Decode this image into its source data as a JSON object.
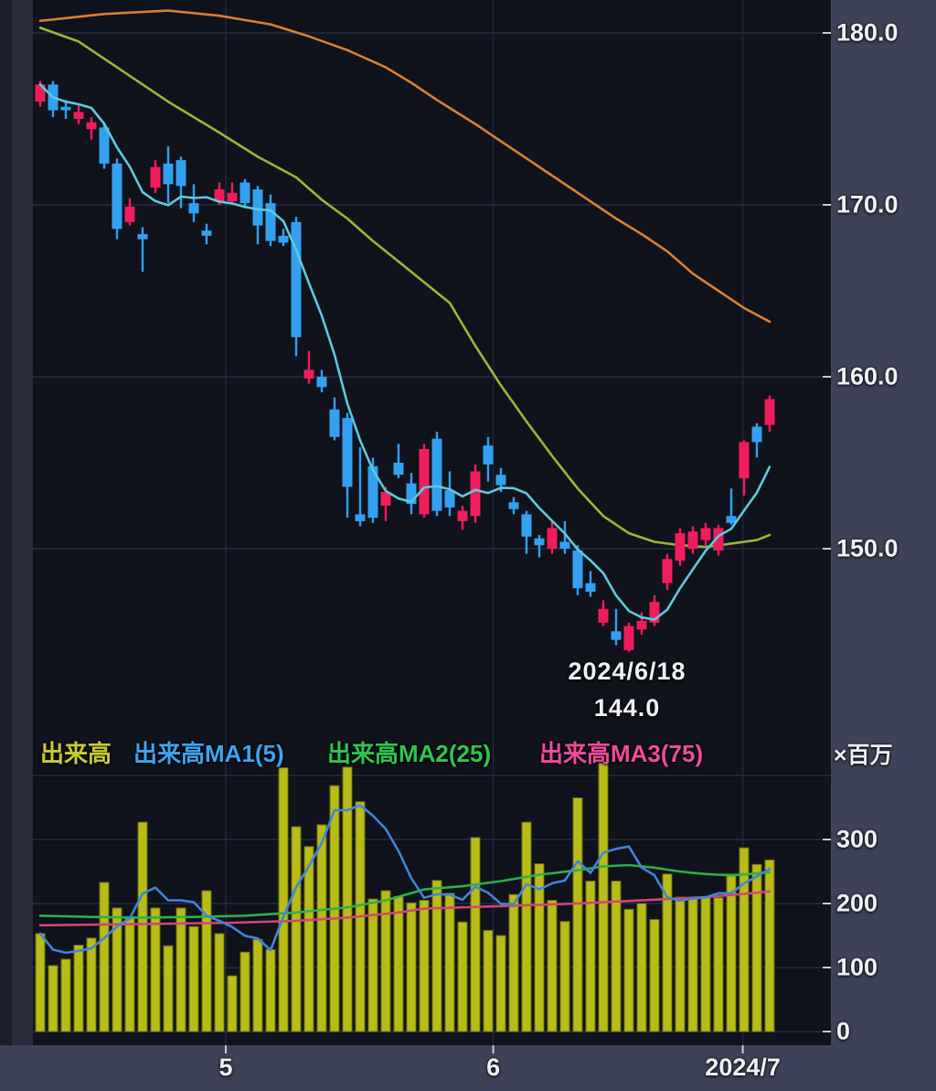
{
  "chart_data": {
    "type": "candlestick+volume-bar",
    "title": "",
    "legend_position": "top-of-volume-pane",
    "grid": true,
    "price_pane": {
      "y_axis": {
        "ticks": [
          {
            "value": 180,
            "label": "180.0"
          },
          {
            "value": 170,
            "label": "170.0"
          },
          {
            "value": 160,
            "label": "160.0"
          },
          {
            "value": 150,
            "label": "150.0"
          }
        ]
      },
      "annotation": {
        "date": "2024/6/18",
        "value": "144.0",
        "index": 46
      },
      "candles_ohlc": [
        [
          176.0,
          177.2,
          175.7,
          177.0
        ],
        [
          177.0,
          177.2,
          175.1,
          175.5
        ],
        [
          175.7,
          176.1,
          175.0,
          175.5
        ],
        [
          175.0,
          175.8,
          174.7,
          175.4
        ],
        [
          174.4,
          175.1,
          173.8,
          174.8
        ],
        [
          174.5,
          174.8,
          172.1,
          172.4
        ],
        [
          172.4,
          172.7,
          168.0,
          168.6
        ],
        [
          169.0,
          170.4,
          168.8,
          169.9
        ],
        [
          168.3,
          168.7,
          166.1,
          168.0
        ],
        [
          171.0,
          172.6,
          170.7,
          172.2
        ],
        [
          172.4,
          173.4,
          170.1,
          171.2
        ],
        [
          172.6,
          172.8,
          169.8,
          171.1
        ],
        [
          170.1,
          171.2,
          169.0,
          169.5
        ],
        [
          168.5,
          168.9,
          167.7,
          168.2
        ],
        [
          170.2,
          171.3,
          170.0,
          170.9
        ],
        [
          170.2,
          171.3,
          170.0,
          170.7
        ],
        [
          171.3,
          171.5,
          169.8,
          170.1
        ],
        [
          170.9,
          171.1,
          167.7,
          168.8
        ],
        [
          170.1,
          170.6,
          167.6,
          167.9
        ],
        [
          168.2,
          168.6,
          167.6,
          167.8
        ],
        [
          169.0,
          169.3,
          161.2,
          162.3
        ],
        [
          159.9,
          161.5,
          159.6,
          160.4
        ],
        [
          160.0,
          160.4,
          159.1,
          159.4
        ],
        [
          158.1,
          158.8,
          156.3,
          156.5
        ],
        [
          157.6,
          157.9,
          151.8,
          153.6
        ],
        [
          152.0,
          155.9,
          151.3,
          151.6
        ],
        [
          154.8,
          155.3,
          151.5,
          151.8
        ],
        [
          152.5,
          153.6,
          151.6,
          153.3
        ],
        [
          155.0,
          156.1,
          154.1,
          154.3
        ],
        [
          153.8,
          154.4,
          152.0,
          152.6
        ],
        [
          152.0,
          156.1,
          151.8,
          155.8
        ],
        [
          156.4,
          156.8,
          151.9,
          152.2
        ],
        [
          153.4,
          154.5,
          151.9,
          152.4
        ],
        [
          151.6,
          152.5,
          151.1,
          152.2
        ],
        [
          151.9,
          154.9,
          151.5,
          154.5
        ],
        [
          156.0,
          156.5,
          153.9,
          154.9
        ],
        [
          154.3,
          154.7,
          153.3,
          153.7
        ],
        [
          152.7,
          153.0,
          152.0,
          152.3
        ],
        [
          152.0,
          152.2,
          149.7,
          150.7
        ],
        [
          150.6,
          150.8,
          149.5,
          150.2
        ],
        [
          150.0,
          151.6,
          149.7,
          151.2
        ],
        [
          150.4,
          151.6,
          149.7,
          150.0
        ],
        [
          149.9,
          150.2,
          147.3,
          147.7
        ],
        [
          148.0,
          148.7,
          147.2,
          147.5
        ],
        [
          145.7,
          147.0,
          145.5,
          146.5
        ],
        [
          145.2,
          146.5,
          144.4,
          144.7
        ],
        [
          144.1,
          145.7,
          144.0,
          145.5
        ],
        [
          145.3,
          146.3,
          145.0,
          145.8
        ],
        [
          145.7,
          147.3,
          145.5,
          146.9
        ],
        [
          148.0,
          149.7,
          147.6,
          149.4
        ],
        [
          149.3,
          151.2,
          149.0,
          150.9
        ],
        [
          150.0,
          151.3,
          149.7,
          151.0
        ],
        [
          150.5,
          151.5,
          150.2,
          151.2
        ],
        [
          149.9,
          151.4,
          149.6,
          151.2
        ],
        [
          151.9,
          153.5,
          151.4,
          151.5
        ],
        [
          154.1,
          156.3,
          153.1,
          156.2
        ],
        [
          157.1,
          157.3,
          155.3,
          156.2
        ],
        [
          157.2,
          158.9,
          156.8,
          158.7
        ]
      ],
      "ma_lines": [
        {
          "name": "MA1(5)",
          "color": "#5ecadd",
          "computed_period": 5
        },
        {
          "name": "MA2(25)",
          "color": "#97b838",
          "points": [
            [
              0,
              180.3
            ],
            [
              3,
              179.5
            ],
            [
              6,
              178.0
            ],
            [
              10,
              176.0
            ],
            [
              14,
              174.2
            ],
            [
              17,
              172.8
            ],
            [
              20,
              171.6
            ],
            [
              22,
              170.3
            ],
            [
              24,
              169.2
            ],
            [
              26,
              167.9
            ],
            [
              28,
              166.7
            ],
            [
              30,
              165.5
            ],
            [
              32,
              164.3
            ],
            [
              34,
              161.8
            ],
            [
              36,
              159.5
            ],
            [
              38,
              157.4
            ],
            [
              40,
              155.4
            ],
            [
              42,
              153.5
            ],
            [
              44,
              151.9
            ],
            [
              46,
              150.9
            ],
            [
              48,
              150.4
            ],
            [
              50,
              150.2
            ],
            [
              52,
              150.1
            ],
            [
              54,
              150.3
            ],
            [
              56,
              150.5
            ],
            [
              57,
              150.8
            ]
          ]
        },
        {
          "name": "MA3(75)",
          "color": "#db7f34",
          "points": [
            [
              0,
              180.7
            ],
            [
              5,
              181.1
            ],
            [
              10,
              181.3
            ],
            [
              14,
              181.0
            ],
            [
              18,
              180.5
            ],
            [
              21,
              179.8
            ],
            [
              24,
              179.0
            ],
            [
              27,
              178.0
            ],
            [
              29,
              177.1
            ],
            [
              31,
              176.1
            ],
            [
              34,
              174.7
            ],
            [
              36,
              173.7
            ],
            [
              38,
              172.7
            ],
            [
              40,
              171.7
            ],
            [
              43,
              170.2
            ],
            [
              45,
              169.2
            ],
            [
              47,
              168.3
            ],
            [
              49,
              167.3
            ],
            [
              51,
              166.0
            ],
            [
              53,
              165.0
            ],
            [
              55,
              164.0
            ],
            [
              57,
              163.2
            ]
          ]
        }
      ],
      "up_color": "#f01d5c",
      "down_color": "#33a1f0"
    },
    "volume_pane": {
      "unit_label": "×百万",
      "y_axis": {
        "gridline_values": [
          400,
          300,
          200,
          100,
          0
        ],
        "ticks": [
          {
            "value": 300,
            "label": "300"
          },
          {
            "value": 200,
            "label": "200"
          },
          {
            "value": 100,
            "label": "100"
          },
          {
            "value": 0,
            "label": "0"
          }
        ]
      },
      "bar_color": "#b9bb17",
      "bar_edge_color": "#6e700c",
      "volumes": [
        153,
        103,
        113,
        135,
        146,
        233,
        193,
        178,
        327,
        193,
        134,
        193,
        164,
        220,
        153,
        87,
        124,
        144,
        128,
        412,
        320,
        289,
        323,
        384,
        413,
        359,
        207,
        220,
        211,
        201,
        205,
        236,
        216,
        171,
        303,
        158,
        150,
        214,
        327,
        262,
        205,
        172,
        365,
        235,
        420,
        235,
        191,
        200,
        175,
        246,
        210,
        207,
        209,
        209,
        246,
        287,
        261,
        268
      ],
      "legend": [
        {
          "label": "出来高",
          "color": "#c9cc31"
        },
        {
          "label": "出来高MA1(5)",
          "color": "#3da5f0"
        },
        {
          "label": "出来高MA2(25)",
          "color": "#2fc64e"
        },
        {
          "label": "出来高MA3(75)",
          "color": "#f04b9c"
        }
      ],
      "ma_lines": [
        {
          "name": "出来高MA1(5)",
          "color": "#3f86d8",
          "computed_period": 5
        },
        {
          "name": "出来高MA2(25)",
          "color": "#2cb14c",
          "points": [
            [
              0,
              181
            ],
            [
              4,
              179
            ],
            [
              8,
              178
            ],
            [
              12,
              179
            ],
            [
              16,
              181
            ],
            [
              20,
              186
            ],
            [
              24,
              194
            ],
            [
              27,
              205
            ],
            [
              30,
              222
            ],
            [
              33,
              227
            ],
            [
              36,
              235
            ],
            [
              39,
              245
            ],
            [
              42,
              252
            ],
            [
              44,
              258
            ],
            [
              46,
              260
            ],
            [
              48,
              256
            ],
            [
              50,
              250
            ],
            [
              52,
              246
            ],
            [
              54,
              244
            ],
            [
              56,
              247
            ],
            [
              57,
              249
            ]
          ]
        },
        {
          "name": "出来高MA3(75)",
          "color": "#d14673",
          "points": [
            [
              0,
              166
            ],
            [
              8,
              168
            ],
            [
              15,
              170
            ],
            [
              20,
              173
            ],
            [
              24,
              178
            ],
            [
              28,
              186
            ],
            [
              30,
              192
            ],
            [
              36,
              196
            ],
            [
              42,
              200
            ],
            [
              48,
              206
            ],
            [
              52,
              210
            ],
            [
              55,
              215
            ],
            [
              57,
              219
            ]
          ]
        }
      ]
    },
    "x_axis": {
      "ticks": [
        {
          "position": 14.5,
          "label": "5"
        },
        {
          "position": 35.4,
          "label": "6"
        },
        {
          "position": 54.9,
          "label": "2024/7"
        }
      ]
    },
    "colors": {
      "plot_bg": "#10121c",
      "axis_band_bg": "#3d4258",
      "left_strip_outer": "#1b1e29",
      "left_strip_inner": "#282c3d",
      "grid_h": "#262b44",
      "grid_v": "#222741",
      "tick_mark": "#c8ccd8",
      "text": "#f0f1f4"
    }
  }
}
